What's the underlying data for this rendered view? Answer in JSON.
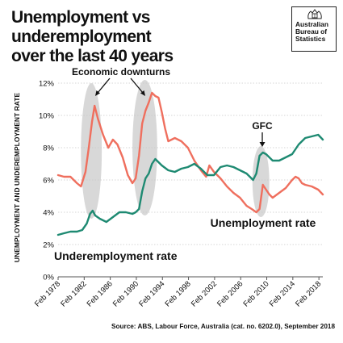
{
  "title_lines": [
    "Unemployment vs underemployment",
    "over the last 40 years"
  ],
  "logo": {
    "lines": [
      "Australian",
      "Bureau of",
      "Statistics"
    ]
  },
  "source": "Source: ABS, Labour Force, Australia (cat. no. 6202.0), September 2018",
  "colors": {
    "unemployment": "#ef6f5e",
    "underemployment": "#1e8a72",
    "highlight": "#d8d8d8",
    "text": "#111111",
    "grid": "#c9c9c9"
  },
  "chart_data": {
    "type": "line",
    "ylabel": "UNEMPLOYMENT AND UNDEREMPLOYMENT RATE",
    "xlabel": "",
    "ylim": [
      0,
      12
    ],
    "xlim": [
      1978.1,
      2018.7
    ],
    "yticks": [
      0,
      2,
      4,
      6,
      8,
      10,
      12
    ],
    "ytick_labels": [
      "0%",
      "2%",
      "4%",
      "6%",
      "8%",
      "10%",
      "12%"
    ],
    "xticks": [
      1978.1,
      1982.1,
      1986.1,
      1990.1,
      1994.1,
      1998.1,
      2002.1,
      2006.1,
      2010.1,
      2014.1,
      2018.1
    ],
    "xtick_labels": [
      "Feb 1978",
      "Feb 1982",
      "Feb 1986",
      "Feb 1990",
      "Feb 1994",
      "Feb 1998",
      "Feb 2002",
      "Feb 2006",
      "Feb 2010",
      "Feb 2014",
      "Feb 2018"
    ],
    "grid": true,
    "legend": "none",
    "series": [
      {
        "name": "Unemployment rate",
        "color": "#ef6f5e",
        "x": [
          1978.1,
          1979.0,
          1980.0,
          1981.0,
          1981.6,
          1982.3,
          1982.8,
          1983.3,
          1983.7,
          1984.2,
          1985.0,
          1985.8,
          1986.5,
          1987.2,
          1988.0,
          1988.8,
          1989.5,
          1990.0,
          1990.5,
          1991.0,
          1991.5,
          1992.0,
          1992.5,
          1993.0,
          1993.5,
          1994.0,
          1994.5,
          1995.0,
          1995.5,
          1996.0,
          1997.0,
          1998.0,
          1999.0,
          2000.0,
          2000.8,
          2001.3,
          2002.0,
          2003.0,
          2004.0,
          2005.0,
          2006.0,
          2007.0,
          2007.8,
          2008.5,
          2009.0,
          2009.5,
          2010.0,
          2010.5,
          2011.0,
          2012.0,
          2013.0,
          2014.0,
          2014.5,
          2015.0,
          2015.5,
          2016.0,
          2017.0,
          2018.0,
          2018.7
        ],
        "y": [
          6.3,
          6.2,
          6.2,
          5.8,
          5.6,
          6.5,
          8.0,
          9.6,
          10.6,
          9.8,
          8.8,
          8.0,
          8.5,
          8.2,
          7.4,
          6.3,
          5.8,
          6.1,
          7.5,
          9.5,
          10.3,
          10.8,
          11.4,
          11.2,
          11.1,
          10.2,
          9.2,
          8.4,
          8.5,
          8.6,
          8.4,
          8.0,
          7.2,
          6.6,
          6.2,
          6.9,
          6.5,
          6.1,
          5.6,
          5.2,
          4.9,
          4.4,
          4.2,
          4.0,
          4.2,
          5.7,
          5.4,
          5.1,
          4.9,
          5.2,
          5.5,
          6.0,
          6.2,
          6.1,
          5.8,
          5.7,
          5.6,
          5.4,
          5.1
        ]
      },
      {
        "name": "Underemployment rate",
        "color": "#1e8a72",
        "x": [
          1978.1,
          1979.0,
          1980.0,
          1981.0,
          1981.8,
          1982.5,
          1983.0,
          1983.4,
          1983.8,
          1984.5,
          1985.5,
          1986.5,
          1987.5,
          1988.5,
          1989.5,
          1990.0,
          1990.5,
          1991.0,
          1991.5,
          1992.0,
          1992.5,
          1993.0,
          1994.0,
          1995.0,
          1996.0,
          1997.0,
          1998.0,
          1999.0,
          2000.0,
          2001.0,
          2002.0,
          2003.0,
          2004.0,
          2005.0,
          2006.0,
          2007.0,
          2008.0,
          2008.5,
          2009.0,
          2009.5,
          2010.0,
          2011.0,
          2012.0,
          2013.0,
          2014.0,
          2015.0,
          2016.0,
          2017.0,
          2018.0,
          2018.7
        ],
        "y": [
          2.6,
          2.7,
          2.8,
          2.8,
          2.9,
          3.3,
          3.9,
          4.1,
          3.8,
          3.6,
          3.4,
          3.7,
          4.0,
          4.0,
          3.9,
          4.0,
          4.2,
          5.3,
          6.1,
          6.4,
          7.0,
          7.3,
          6.9,
          6.6,
          6.5,
          6.7,
          6.8,
          7.0,
          6.7,
          6.3,
          6.3,
          6.8,
          6.9,
          6.8,
          6.6,
          6.4,
          6.0,
          6.4,
          7.5,
          7.7,
          7.6,
          7.2,
          7.2,
          7.4,
          7.6,
          8.2,
          8.6,
          8.7,
          8.8,
          8.5
        ]
      }
    ],
    "annotations": [
      {
        "text": "Economic downturns",
        "type": "label"
      },
      {
        "text": "GFC",
        "type": "label"
      },
      {
        "text": "Unemployment rate",
        "type": "series-label",
        "series": "Unemployment rate"
      },
      {
        "text": "Underemployment rate",
        "type": "series-label",
        "series": "Underemployment rate"
      }
    ],
    "highlights": [
      {
        "x_center": 1983.2,
        "y_center": 7.8,
        "x_radius": 1.6,
        "y_radius": 4.2
      },
      {
        "x_center": 1991.4,
        "y_center": 8.0,
        "x_radius": 1.9,
        "y_radius": 4.2
      },
      {
        "x_center": 2009.2,
        "y_center": 5.9,
        "x_radius": 1.3,
        "y_radius": 2.2
      }
    ]
  }
}
